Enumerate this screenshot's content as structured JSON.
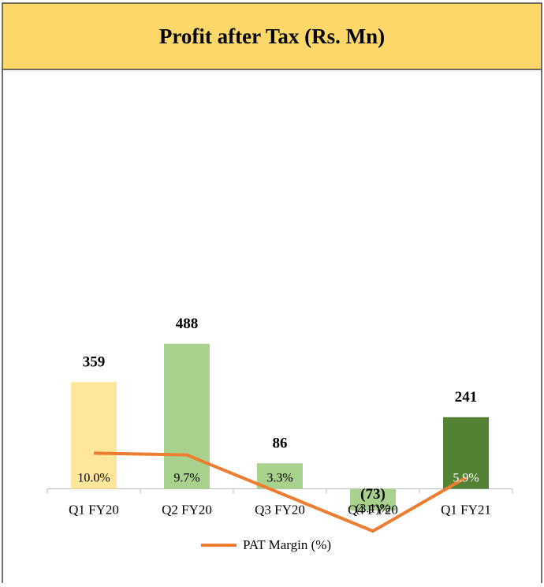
{
  "chart_data": {
    "type": "bar",
    "title": "Profit after Tax (Rs. Mn)",
    "categories": [
      "Q1 FY20",
      "Q2 FY20",
      "Q3 FY20",
      "Q4 FY20",
      "Q1 FY21"
    ],
    "series": [
      {
        "values": [
          359,
          488,
          86,
          -73,
          241
        ],
        "value_labels": [
          "359",
          "488",
          "86",
          "(73)",
          "241"
        ],
        "colors": [
          "#ffe699",
          "#a9d18e",
          "#a9d18e",
          "#a9d18e",
          "#548235"
        ]
      },
      {
        "name": "PAT Margin (%)",
        "type": "line",
        "axis": "y2",
        "color": "#ed7d31",
        "values": [
          10.0,
          9.7,
          3.3,
          -3.1,
          5.9
        ],
        "value_labels": [
          "10.0%",
          "9.7%",
          "3.3%",
          "(3.1)%",
          "5.9%"
        ]
      }
    ],
    "ylim": [
      -200,
      1400
    ],
    "y2lim": [
      -6,
      74
    ],
    "legend": "bottom"
  }
}
